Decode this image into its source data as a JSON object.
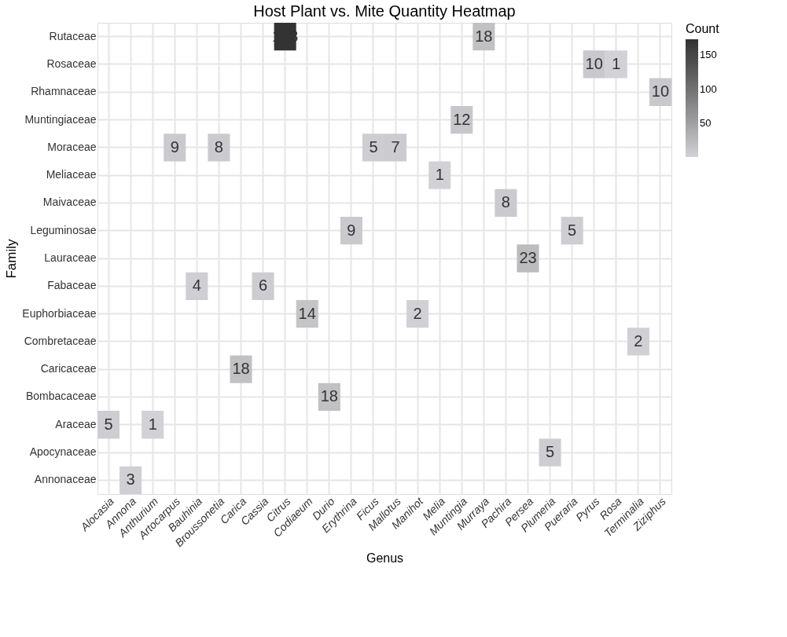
{
  "chart_data": {
    "type": "heatmap",
    "title": "Host Plant vs. Mite Quantity Heatmap",
    "xlabel": "Genus",
    "ylabel": "Family",
    "clabel": "Count",
    "categories": [
      "Alocasia",
      "Annona",
      "Anthurium",
      "Artocarpus",
      "Bauhinia",
      "Broussonetia",
      "Carica",
      "Cassia",
      "Citrus",
      "Codiaeum",
      "Durio",
      "Erythrina",
      "Ficus",
      "Mallotus",
      "Manihot",
      "Melia",
      "Muntingia",
      "Murraya",
      "Pachira",
      "Persea",
      "Plumeria",
      "Pueraria",
      "Pyrus",
      "Rosa",
      "Terminalia",
      "Ziziphus"
    ],
    "y_categories": [
      "Rutaceae",
      "Rosaceae",
      "Rhamnaceae",
      "Muntingiaceae",
      "Moraceae",
      "Meliaceae",
      "Maivaceae",
      "Leguminosae",
      "Lauraceae",
      "Fabaceae",
      "Euphorbiaceae",
      "Combretaceae",
      "Caricaceae",
      "Bombacaceae",
      "Araceae",
      "Apocynaceae",
      "Annonaceae"
    ],
    "cells": [
      [
        null,
        null,
        null,
        null,
        null,
        null,
        null,
        null,
        173,
        null,
        null,
        null,
        null,
        null,
        null,
        null,
        null,
        18,
        null,
        null,
        null,
        null,
        null,
        null,
        null,
        null
      ],
      [
        null,
        null,
        null,
        null,
        null,
        null,
        null,
        null,
        null,
        null,
        null,
        null,
        null,
        null,
        null,
        null,
        null,
        null,
        null,
        null,
        null,
        null,
        10,
        1,
        null,
        null
      ],
      [
        null,
        null,
        null,
        null,
        null,
        null,
        null,
        null,
        null,
        null,
        null,
        null,
        null,
        null,
        null,
        null,
        null,
        null,
        null,
        null,
        null,
        null,
        null,
        null,
        null,
        10
      ],
      [
        null,
        null,
        null,
        null,
        null,
        null,
        null,
        null,
        null,
        null,
        null,
        null,
        null,
        null,
        null,
        null,
        12,
        null,
        null,
        null,
        null,
        null,
        null,
        null,
        null,
        null
      ],
      [
        null,
        null,
        null,
        9,
        null,
        8,
        null,
        null,
        null,
        null,
        null,
        null,
        5,
        7,
        null,
        null,
        null,
        null,
        null,
        null,
        null,
        null,
        null,
        null,
        null,
        null
      ],
      [
        null,
        null,
        null,
        null,
        null,
        null,
        null,
        null,
        null,
        null,
        null,
        null,
        null,
        null,
        null,
        1,
        null,
        null,
        null,
        null,
        null,
        null,
        null,
        null,
        null,
        null
      ],
      [
        null,
        null,
        null,
        null,
        null,
        null,
        null,
        null,
        null,
        null,
        null,
        null,
        null,
        null,
        null,
        null,
        null,
        null,
        8,
        null,
        null,
        null,
        null,
        null,
        null,
        null
      ],
      [
        null,
        null,
        null,
        null,
        null,
        null,
        null,
        null,
        null,
        null,
        null,
        9,
        null,
        null,
        null,
        null,
        null,
        null,
        null,
        null,
        null,
        5,
        null,
        null,
        null,
        null
      ],
      [
        null,
        null,
        null,
        null,
        null,
        null,
        null,
        null,
        null,
        null,
        null,
        null,
        null,
        null,
        null,
        null,
        null,
        null,
        null,
        23,
        null,
        null,
        null,
        null,
        null,
        null
      ],
      [
        null,
        null,
        null,
        null,
        4,
        null,
        null,
        6,
        null,
        null,
        null,
        null,
        null,
        null,
        null,
        null,
        null,
        null,
        null,
        null,
        null,
        null,
        null,
        null,
        null,
        null
      ],
      [
        null,
        null,
        null,
        null,
        null,
        null,
        null,
        null,
        null,
        14,
        null,
        null,
        null,
        null,
        2,
        null,
        null,
        null,
        null,
        null,
        null,
        null,
        null,
        null,
        null,
        null
      ],
      [
        null,
        null,
        null,
        null,
        null,
        null,
        null,
        null,
        null,
        null,
        null,
        null,
        null,
        null,
        null,
        null,
        null,
        null,
        null,
        null,
        null,
        null,
        null,
        null,
        2,
        null
      ],
      [
        null,
        null,
        null,
        null,
        null,
        null,
        18,
        null,
        null,
        null,
        null,
        null,
        null,
        null,
        null,
        null,
        null,
        null,
        null,
        null,
        null,
        null,
        null,
        null,
        null,
        null
      ],
      [
        null,
        null,
        null,
        null,
        null,
        null,
        null,
        null,
        null,
        null,
        18,
        null,
        null,
        null,
        null,
        null,
        null,
        null,
        null,
        null,
        null,
        null,
        null,
        null,
        null,
        null
      ],
      [
        5,
        null,
        1,
        null,
        null,
        null,
        null,
        null,
        null,
        null,
        null,
        null,
        null,
        null,
        null,
        null,
        null,
        null,
        null,
        null,
        null,
        null,
        null,
        null,
        null,
        null
      ],
      [
        null,
        null,
        null,
        null,
        null,
        null,
        null,
        null,
        null,
        null,
        null,
        null,
        null,
        null,
        null,
        null,
        null,
        null,
        null,
        null,
        5,
        null,
        null,
        null,
        null,
        null
      ],
      [
        null,
        3,
        null,
        null,
        null,
        null,
        null,
        null,
        null,
        null,
        null,
        null,
        null,
        null,
        null,
        null,
        null,
        null,
        null,
        null,
        null,
        null,
        null,
        null,
        null,
        null
      ]
    ],
    "clim": [
      1,
      173
    ],
    "cticks": [
      50,
      100,
      150
    ],
    "colors": [
      "#d2d2d6",
      "#333333"
    ],
    "data_labels": true,
    "grid": true
  }
}
